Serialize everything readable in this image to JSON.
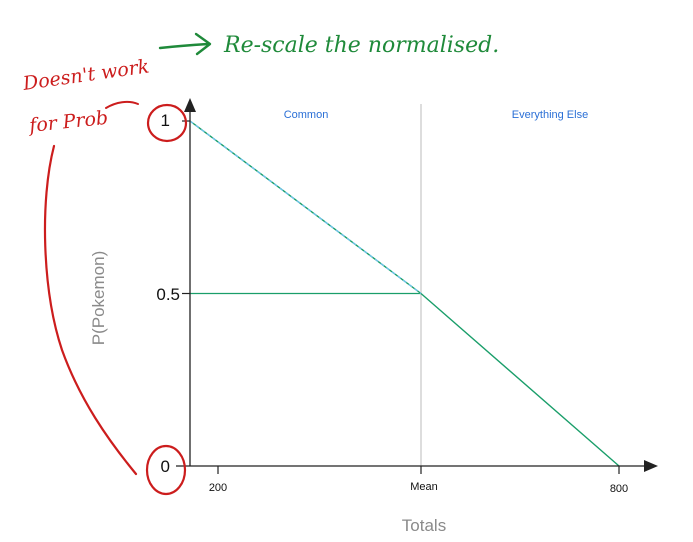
{
  "chart_data": {
    "type": "line",
    "xlabel": "Totals",
    "ylabel": "P(Pokemon)",
    "x_tick_labels": [
      "200",
      "Mean",
      "800"
    ],
    "y_tick_labels": [
      "0",
      "0.5",
      "1"
    ],
    "regions": [
      {
        "label": "Common"
      },
      {
        "label": "Everything Else"
      }
    ],
    "series": [
      {
        "x": [
          150,
          500,
          800
        ],
        "y": [
          1,
          0.5,
          0
        ],
        "color": "#1a9e6a"
      }
    ],
    "mean_x": 500,
    "reference_level": 0.5,
    "xlim": [
      150,
      800
    ],
    "ylim": [
      0,
      1
    ],
    "colors": {
      "line": "#1a9e6a",
      "dashed_overlay": "#6ec3e8",
      "axis": "#222222",
      "divider": "#bbbbbb",
      "region_label": "#2a6fd6",
      "annotation_red": "#cc1d1d",
      "annotation_green": "#1f8a3a"
    }
  },
  "annotations": {
    "green_note": "Re-scale the normalised.",
    "red_note_line1": "Doesn't work",
    "red_note_line2": "for Prob"
  }
}
